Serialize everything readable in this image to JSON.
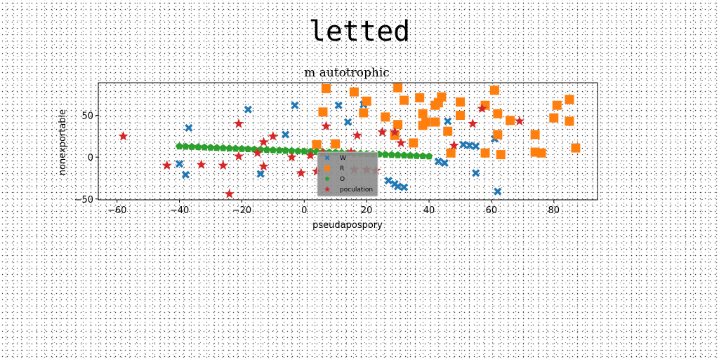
{
  "figure": {
    "suptitle": "letted"
  },
  "chart_data": {
    "type": "scatter",
    "title": "m autotrophic",
    "xlabel": "pseudapospory",
    "ylabel": "nonexportable",
    "xlim": [
      -66,
      94
    ],
    "ylim": [
      -51,
      89
    ],
    "xticks": [
      -60,
      -40,
      -20,
      0,
      20,
      40,
      60,
      80
    ],
    "yticks": [
      -50,
      0,
      50
    ],
    "grid": false,
    "legend_position": "lower center",
    "series": [
      {
        "name": "W",
        "marker": "x",
        "color": "#1f77b4",
        "points": [
          [
            -37,
            35
          ],
          [
            -18,
            57
          ],
          [
            -3,
            62
          ],
          [
            11,
            62
          ],
          [
            19,
            63
          ],
          [
            -6,
            27
          ],
          [
            14,
            42
          ],
          [
            -40,
            -8
          ],
          [
            -38,
            -21
          ],
          [
            -14,
            -20
          ],
          [
            27,
            -28
          ],
          [
            29,
            -32
          ],
          [
            30,
            -35
          ],
          [
            32,
            -36
          ],
          [
            43,
            -5
          ],
          [
            45,
            -7
          ],
          [
            46,
            43
          ],
          [
            51,
            15
          ],
          [
            53,
            14
          ],
          [
            55,
            13
          ],
          [
            55,
            -19
          ],
          [
            61,
            22
          ],
          [
            62,
            -41
          ]
        ]
      },
      {
        "name": "R",
        "marker": "s",
        "color": "#ff7f0e",
        "points": [
          [
            7,
            82
          ],
          [
            16,
            78
          ],
          [
            30,
            83
          ],
          [
            32,
            68
          ],
          [
            37,
            71
          ],
          [
            42,
            62
          ],
          [
            44,
            72
          ],
          [
            43,
            65
          ],
          [
            50,
            50
          ],
          [
            50,
            66
          ],
          [
            38,
            52
          ],
          [
            39,
            42
          ],
          [
            38,
            38
          ],
          [
            42,
            42
          ],
          [
            46,
            31
          ],
          [
            6,
            54
          ],
          [
            19,
            53
          ],
          [
            20,
            67
          ],
          [
            26,
            48
          ],
          [
            30,
            39
          ],
          [
            29,
            26
          ],
          [
            35,
            17
          ],
          [
            4,
            15
          ],
          [
            10,
            16
          ],
          [
            47,
            5
          ],
          [
            58,
            5
          ],
          [
            58,
            62
          ],
          [
            61,
            80
          ],
          [
            62,
            52
          ],
          [
            62,
            27
          ],
          [
            63,
            3
          ],
          [
            66,
            44
          ],
          [
            74,
            27
          ],
          [
            74,
            6
          ],
          [
            76,
            5
          ],
          [
            80,
            47
          ],
          [
            81,
            62
          ],
          [
            85,
            69
          ],
          [
            85,
            43
          ],
          [
            87,
            11
          ]
        ]
      },
      {
        "name": "O",
        "marker": "p",
        "color": "#2ca02c",
        "points": [
          [
            -40,
            13
          ],
          [
            -38,
            12.7
          ],
          [
            -36,
            12.4
          ],
          [
            -34,
            12.1
          ],
          [
            -32,
            11.8
          ],
          [
            -30,
            11.5
          ],
          [
            -28,
            11.2
          ],
          [
            -26,
            10.9
          ],
          [
            -24,
            10.6
          ],
          [
            -22,
            10.3
          ],
          [
            -20,
            10
          ],
          [
            -18,
            9.7
          ],
          [
            -16,
            9.4
          ],
          [
            -14,
            9.1
          ],
          [
            -12,
            8.8
          ],
          [
            -10,
            8.5
          ],
          [
            -8,
            8.2
          ],
          [
            -6,
            7.9
          ],
          [
            -4,
            7.6
          ],
          [
            -2,
            7.3
          ],
          [
            0,
            7
          ],
          [
            2,
            6.7
          ],
          [
            4,
            6.4
          ],
          [
            6,
            6.1
          ],
          [
            8,
            5.8
          ],
          [
            10,
            5.5
          ],
          [
            12,
            5.2
          ],
          [
            14,
            4.9
          ],
          [
            16,
            4.6
          ],
          [
            18,
            4.3
          ],
          [
            20,
            4
          ],
          [
            22,
            3.7
          ],
          [
            24,
            3.4
          ],
          [
            26,
            3.1
          ],
          [
            28,
            2.8
          ],
          [
            30,
            2.5
          ],
          [
            32,
            2.2
          ],
          [
            34,
            1.9
          ],
          [
            36,
            1.6
          ],
          [
            38,
            1.3
          ],
          [
            40,
            1
          ]
        ]
      },
      {
        "name": "poculation",
        "marker": "*",
        "color": "#d62728",
        "points": [
          [
            -58,
            25
          ],
          [
            -44,
            -10
          ],
          [
            -33,
            -9
          ],
          [
            -26,
            -10
          ],
          [
            -24,
            -44
          ],
          [
            -21,
            40
          ],
          [
            -21,
            1
          ],
          [
            -15,
            5
          ],
          [
            -13,
            -11
          ],
          [
            -13,
            18
          ],
          [
            -10,
            25
          ],
          [
            -4,
            0
          ],
          [
            -1,
            -19
          ],
          [
            2,
            2
          ],
          [
            4,
            -17
          ],
          [
            6,
            5
          ],
          [
            7,
            37
          ],
          [
            15,
            6
          ],
          [
            16,
            -15
          ],
          [
            17,
            26
          ],
          [
            20,
            -15
          ],
          [
            23,
            -16
          ],
          [
            25,
            30
          ],
          [
            29,
            30
          ],
          [
            31,
            17
          ],
          [
            48,
            14
          ],
          [
            54,
            40
          ],
          [
            57,
            58
          ],
          [
            69,
            43
          ]
        ]
      }
    ]
  }
}
